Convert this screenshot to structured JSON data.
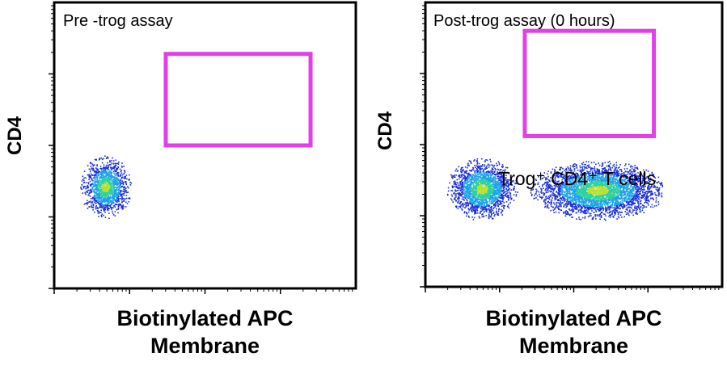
{
  "chart_data": [
    {
      "type": "scatter",
      "subtype": "flow-cytometry-density",
      "title": "Pre -trog assay",
      "ylabel": "CD4",
      "xlabel_line1": "Biotinylated APC",
      "xlabel_line2": "Membrane",
      "gate_label": "",
      "populations": [
        {
          "cx": 0.17,
          "cy": 0.645,
          "rx": 0.085,
          "ry": 0.11,
          "peak": "#e02020"
        }
      ],
      "gate": {
        "x0": 0.37,
        "x1": 0.85,
        "y0": 0.5,
        "y1": 0.82,
        "color": "#e23fe8"
      }
    },
    {
      "type": "scatter",
      "subtype": "flow-cytometry-density",
      "title": "Post-trog assay (0 hours)",
      "ylabel": "CD4",
      "xlabel_line1": "Biotinylated APC",
      "xlabel_line2": "Membrane",
      "gate_label": "Trog⁺ CD4⁺ T cells",
      "populations": [
        {
          "cx": 0.19,
          "cy": 0.655,
          "rx": 0.12,
          "ry": 0.11,
          "peak": "#e02020"
        },
        {
          "cx": 0.58,
          "cy": 0.66,
          "rx": 0.23,
          "ry": 0.105,
          "peak": "#c8e020"
        }
      ],
      "gate": {
        "x0": 0.335,
        "x1": 0.77,
        "y0": 0.47,
        "y1": 0.84,
        "color": "#e23fe8"
      }
    }
  ]
}
